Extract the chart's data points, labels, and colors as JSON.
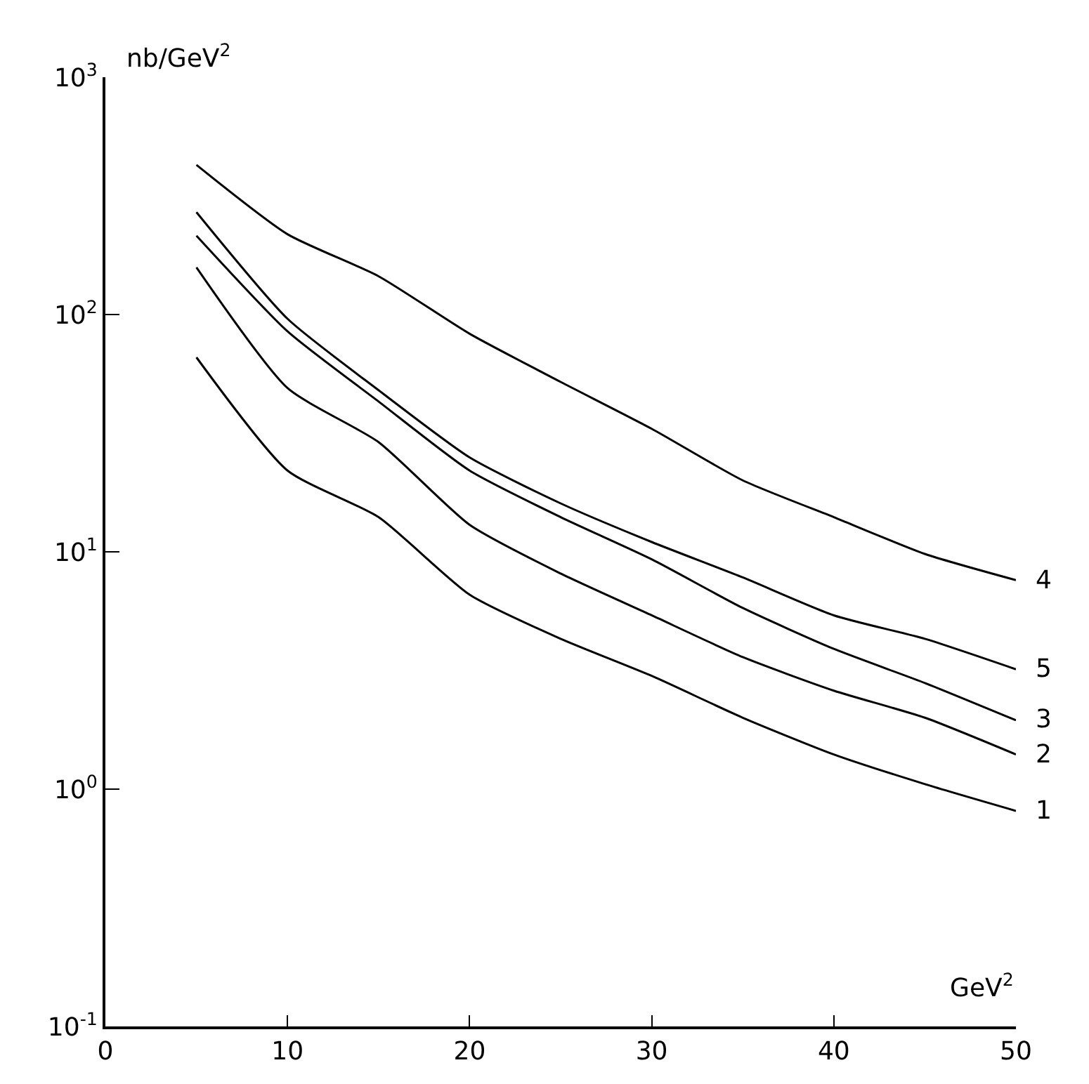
{
  "chart_data": {
    "type": "line",
    "xlabel": "GeV$^{2}$",
    "ylabel": "nb/GeV$^{2}$",
    "x": [
      5,
      10,
      15,
      20,
      25,
      30,
      35,
      40,
      45,
      50
    ],
    "series": [
      {
        "name": "1",
        "color": "#000000",
        "values": [
          66,
          22,
          14,
          6.6,
          4.3,
          3,
          2.0,
          1.4,
          1.05,
          0.81
        ]
      },
      {
        "name": "2",
        "color": "#000000",
        "values": [
          158,
          49,
          29,
          13,
          8.1,
          5.4,
          3.6,
          2.6,
          2.0,
          1.4
        ]
      },
      {
        "name": "3",
        "color": "#000000",
        "values": [
          215,
          85,
          43,
          22,
          14,
          9.3,
          5.8,
          3.9,
          2.8,
          1.95
        ]
      },
      {
        "name": "4",
        "color": "#000000",
        "values": [
          427,
          218,
          145,
          83,
          52,
          33,
          20,
          14,
          9.8,
          7.6
        ]
      },
      {
        "name": "5",
        "color": "#000000",
        "values": [
          270,
          96,
          48,
          25,
          16,
          11,
          7.8,
          5.4,
          4.3,
          3.2
        ]
      }
    ],
    "log": "y",
    "xlim": [
      0,
      50
    ],
    "xticks": [
      0,
      10,
      20,
      30,
      40,
      50
    ],
    "ylim": [
      0.1,
      1000
    ],
    "yticks": [
      {
        "value": 0.1,
        "label": "10$^{-1}$"
      },
      {
        "value": 1,
        "label": "10$^{0}$"
      },
      {
        "value": 10,
        "label": "10$^{1}$"
      },
      {
        "value": 100,
        "label": "10$^{2}$"
      },
      {
        "value": 1000,
        "label": "10$^{3}$"
      }
    ],
    "legend": false,
    "marker": "none",
    "line_style": "solid"
  }
}
